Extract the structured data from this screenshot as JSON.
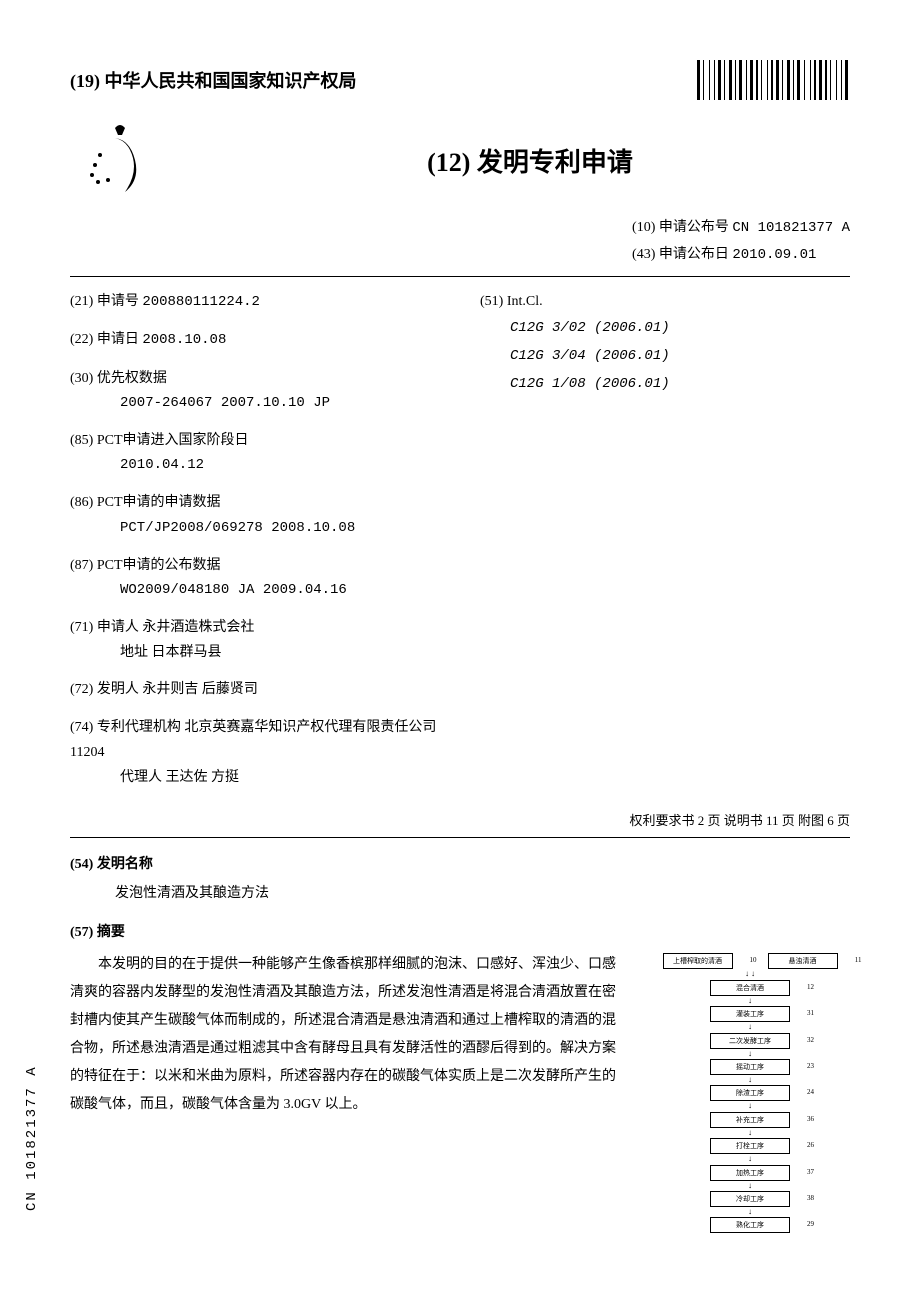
{
  "header": {
    "country": "(19) 中华人民共和国国家知识产权局",
    "docType": "(12) 发明专利申请"
  },
  "publication": {
    "pubNumLabel": "(10) 申请公布号",
    "pubNum": "CN 101821377 A",
    "pubDateLabel": "(43) 申请公布日",
    "pubDate": "2010.09.01"
  },
  "bibliographic": {
    "appNum": {
      "label": "(21) 申请号",
      "value": "200880111224.2"
    },
    "appDate": {
      "label": "(22) 申请日",
      "value": "2008.10.08"
    },
    "priority": {
      "label": "(30) 优先权数据",
      "value": "2007-264067  2007.10.10  JP"
    },
    "pctEntry": {
      "label": "(85) PCT申请进入国家阶段日",
      "value": "2010.04.12"
    },
    "pctAppData": {
      "label": "(86) PCT申请的申请数据",
      "value": "PCT/JP2008/069278  2008.10.08"
    },
    "pctPubData": {
      "label": "(87) PCT申请的公布数据",
      "value": "WO2009/048180  JA  2009.04.16"
    },
    "applicant": {
      "label": "(71) 申请人",
      "value": "永井酒造株式会社",
      "addrLabel": "地址",
      "addr": "日本群马县"
    },
    "inventor": {
      "label": "(72) 发明人",
      "value": "永井则吉   后藤贤司"
    },
    "agent": {
      "label": "(74) 专利代理机构",
      "value": "北京英赛嘉华知识产权代理有限责任公司  11204",
      "agentLabel": "代理人",
      "agentName": "王达佐   方挺"
    },
    "ipc": {
      "label": "(51) Int.Cl.",
      "items": [
        "C12G  3/02 (2006.01)",
        "C12G  3/04 (2006.01)",
        "C12G  1/08 (2006.01)"
      ]
    }
  },
  "footerMeta": "权利要求书 2 页  说明书 11 页  附图 6 页",
  "invention": {
    "titleLabel": "(54) 发明名称",
    "title": "发泡性清酒及其酿造方法",
    "abstractLabel": "(57) 摘要",
    "abstract": "本发明的目的在于提供一种能够产生像香槟那样细腻的泡沫、口感好、浑浊少、口感清爽的容器内发酵型的发泡性清酒及其酿造方法，所述发泡性清酒是将混合清酒放置在密封槽内使其产生碳酸气体而制成的，所述混合清酒是悬浊清酒和通过上槽榨取的清酒的混合物，所述悬浊清酒是通过粗滤其中含有酵母且具有发酵活性的酒醪后得到的。解决方案的特征在于：以米和米曲为原料，所述容器内存在的碳酸气体实质上是二次发酵所产生的碳酸气体，而且，碳酸气体含量为 3.0GV 以上。"
  },
  "flowchart": {
    "top1": {
      "text": "上槽榨取的清酒",
      "num": "10"
    },
    "top2": {
      "text": "悬浊清酒",
      "num": "11"
    },
    "mix": {
      "text": "混合清酒",
      "num": "12"
    },
    "steps": [
      {
        "text": "灌装工序",
        "num": "31"
      },
      {
        "text": "二次发酵工序",
        "num": "32"
      },
      {
        "text": "摇动工序",
        "num": "23"
      },
      {
        "text": "除渣工序",
        "num": "24"
      },
      {
        "text": "补充工序",
        "num": "36"
      },
      {
        "text": "打栓工序",
        "num": "26"
      },
      {
        "text": "加热工序",
        "num": "37"
      },
      {
        "text": "冷却工序",
        "num": "38"
      },
      {
        "text": "熟化工序",
        "num": "29"
      }
    ]
  },
  "sideLabel": "CN  101821377  A",
  "barcode": {
    "widths": [
      3,
      1,
      1,
      3,
      1,
      2,
      1,
      1,
      3,
      1,
      1,
      2,
      3,
      1,
      1,
      1,
      3,
      2,
      1,
      1,
      3,
      1,
      2,
      1,
      1,
      3,
      1,
      1,
      2,
      1,
      3,
      1,
      1,
      2,
      3,
      1,
      1,
      1,
      3,
      2,
      1,
      3,
      1,
      1,
      2,
      1,
      3,
      1,
      2,
      1,
      1,
      3,
      1,
      2,
      1,
      1,
      3,
      1
    ]
  }
}
